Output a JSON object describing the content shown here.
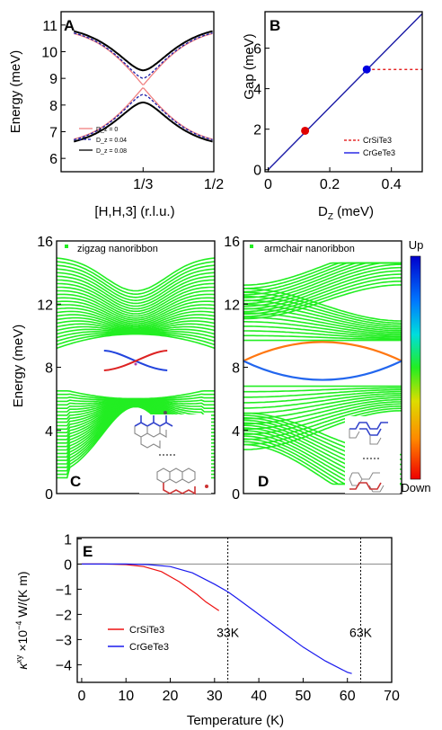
{
  "chart_data": [
    {
      "panel": "A",
      "type": "line",
      "xlabel": "[H,H,3]  (r.l.u.)",
      "ylabel": "Energy  (meV)",
      "xlim": [
        0.14,
        0.5
      ],
      "ylim": [
        5.5,
        11.5
      ],
      "xticks": [
        {
          "value": 0.3333,
          "label": "1/3"
        },
        {
          "value": 0.5,
          "label": "1/2"
        }
      ],
      "yticks": [
        6,
        7,
        8,
        9,
        10,
        11
      ],
      "legend_position": "bottom-left",
      "series": [
        {
          "name": "D_z = 0",
          "color": "#f08080",
          "style": "solid",
          "gap_meV": 0.0
        },
        {
          "name": "D_z = 0.04",
          "color": "#1a1aa6",
          "style": "dashed",
          "gap_meV": 0.6
        },
        {
          "name": "D_z = 0.08",
          "color": "#000000",
          "style": "solid",
          "gap_meV": 1.2
        }
      ],
      "band_center_meV": 8.7,
      "upper_band_top_meV": 10.9,
      "lower_band_bottom_meV": 6.1
    },
    {
      "panel": "B",
      "type": "line",
      "xlabel": "D_z  (meV)",
      "ylabel": "Gap  (meV)",
      "xlim": [
        -0.01,
        0.5
      ],
      "ylim": [
        -0.1,
        7.8
      ],
      "xticks": [
        0,
        0.2,
        0.4
      ],
      "yticks": [
        0,
        2,
        4,
        6
      ],
      "legend_position": "bottom-right",
      "line": {
        "x": [
          0,
          0.5
        ],
        "y": [
          0,
          7.7
        ],
        "color": "#1a1aa6"
      },
      "points": [
        {
          "label": "CrSiTe3",
          "x": 0.12,
          "y": 1.92,
          "color": "#e00000"
        },
        {
          "label": "CrGeTe3",
          "x": 0.32,
          "y": 4.95,
          "color": "#0000e0"
        }
      ],
      "dashed_level": {
        "y": 4.95,
        "x_from": 0.32,
        "x_to": 0.5,
        "color": "#e00000"
      },
      "legend": [
        {
          "label": "CrSiTe3",
          "color": "#e00000",
          "style": "dashed"
        },
        {
          "label": "CrGeTe3",
          "color": "#0000e0",
          "style": "solid"
        }
      ]
    },
    {
      "panel": "C",
      "type": "line",
      "ylabel": "Energy  (meV)",
      "ylim": [
        0,
        16
      ],
      "yticks": [
        0,
        4,
        8,
        12,
        16
      ],
      "legend_label": "zigzag nanoribbon",
      "bulk_color": "#22ee22",
      "edge_crossing_meV": 8.2
    },
    {
      "panel": "D",
      "type": "line",
      "ylim": [
        0,
        16
      ],
      "yticks": [
        0,
        4,
        8,
        12,
        16
      ],
      "legend_label": "armchair nanoribbon",
      "bulk_color": "#22ee22",
      "edge_energy_meV": 8.4
    },
    {
      "panel": "E",
      "type": "line",
      "xlabel": "Temperature  (K)",
      "xlim": [
        -1,
        70
      ],
      "ylim": [
        -4.7,
        1.05
      ],
      "xticks": [
        0,
        10,
        20,
        30,
        40,
        50,
        60,
        70
      ],
      "yticks": [
        1,
        0,
        -1,
        -2,
        -3,
        -4
      ],
      "legend_position": "middle-left",
      "series": [
        {
          "name": "CrSiTe3",
          "color": "#ee1111",
          "x": [
            0,
            5,
            10,
            14,
            18,
            22,
            26,
            28,
            31
          ],
          "y": [
            0,
            0,
            -0.02,
            -0.1,
            -0.3,
            -0.7,
            -1.2,
            -1.5,
            -1.85
          ]
        },
        {
          "name": "CrGeTe3",
          "color": "#1a1aee",
          "x": [
            0,
            5,
            10,
            15,
            20,
            25,
            30,
            33,
            35,
            40,
            45,
            50,
            55,
            60,
            61
          ],
          "y": [
            0,
            0,
            0,
            -0.02,
            -0.1,
            -0.35,
            -0.8,
            -1.1,
            -1.35,
            -2.0,
            -2.65,
            -3.3,
            -3.85,
            -4.3,
            -4.35
          ]
        }
      ],
      "vlines": [
        {
          "x": 33,
          "label": "33K"
        },
        {
          "x": 63,
          "label": "63K"
        }
      ]
    }
  ],
  "colorbar": {
    "top_label": "Up",
    "bottom_label": "Down"
  }
}
